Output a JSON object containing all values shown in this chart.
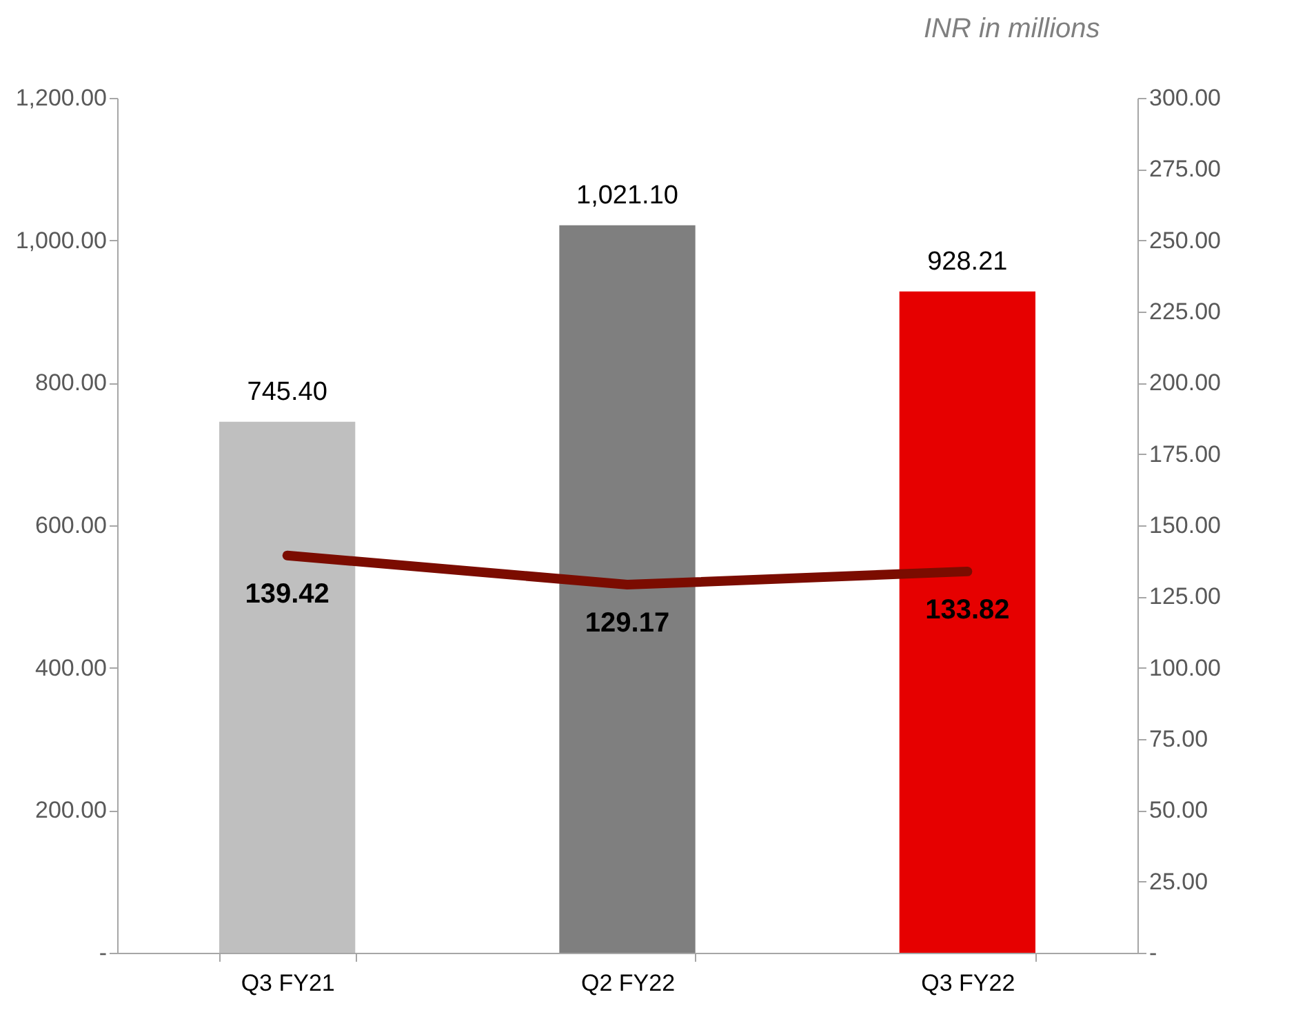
{
  "chart_data": {
    "type": "bar",
    "annotations": [
      "INR in millions"
    ],
    "categories": [
      "Q3 FY21",
      "Q2 FY22",
      "Q3 FY22"
    ],
    "series": [
      {
        "colors": [
          "#bfbfbf",
          "#7f7f7f",
          "#e60000"
        ],
        "values": [
          745.4,
          1021.1,
          928.21
        ],
        "value_labels": [
          "745.40",
          "1,021.10",
          "928.21"
        ]
      },
      {
        "type": "line",
        "axis": "y2",
        "color": "#7b0c00",
        "values": [
          139.42,
          129.17,
          133.82
        ],
        "value_labels": [
          "139.42",
          "129.17",
          "133.82"
        ]
      }
    ],
    "ylim": [
      0,
      1200
    ],
    "yticks": [
      {
        "value": 0,
        "label": "-"
      },
      {
        "value": 200,
        "label": "200.00"
      },
      {
        "value": 400,
        "label": "400.00"
      },
      {
        "value": 600,
        "label": "600.00"
      },
      {
        "value": 800,
        "label": "800.00"
      },
      {
        "value": 1000,
        "label": "1,000.00"
      },
      {
        "value": 1200,
        "label": "1,200.00"
      }
    ],
    "y2lim": [
      0,
      300
    ],
    "y2ticks": [
      {
        "value": 0,
        "label": "-"
      },
      {
        "value": 25,
        "label": "25.00"
      },
      {
        "value": 50,
        "label": "50.00"
      },
      {
        "value": 75,
        "label": "75.00"
      },
      {
        "value": 100,
        "label": "100.00"
      },
      {
        "value": 125,
        "label": "125.00"
      },
      {
        "value": 150,
        "label": "150.00"
      },
      {
        "value": 175,
        "label": "175.00"
      },
      {
        "value": 200,
        "label": "200.00"
      },
      {
        "value": 225,
        "label": "225.00"
      },
      {
        "value": 250,
        "label": "250.00"
      },
      {
        "value": 275,
        "label": "275.00"
      },
      {
        "value": 300,
        "label": "300.00"
      }
    ],
    "grid": false
  }
}
